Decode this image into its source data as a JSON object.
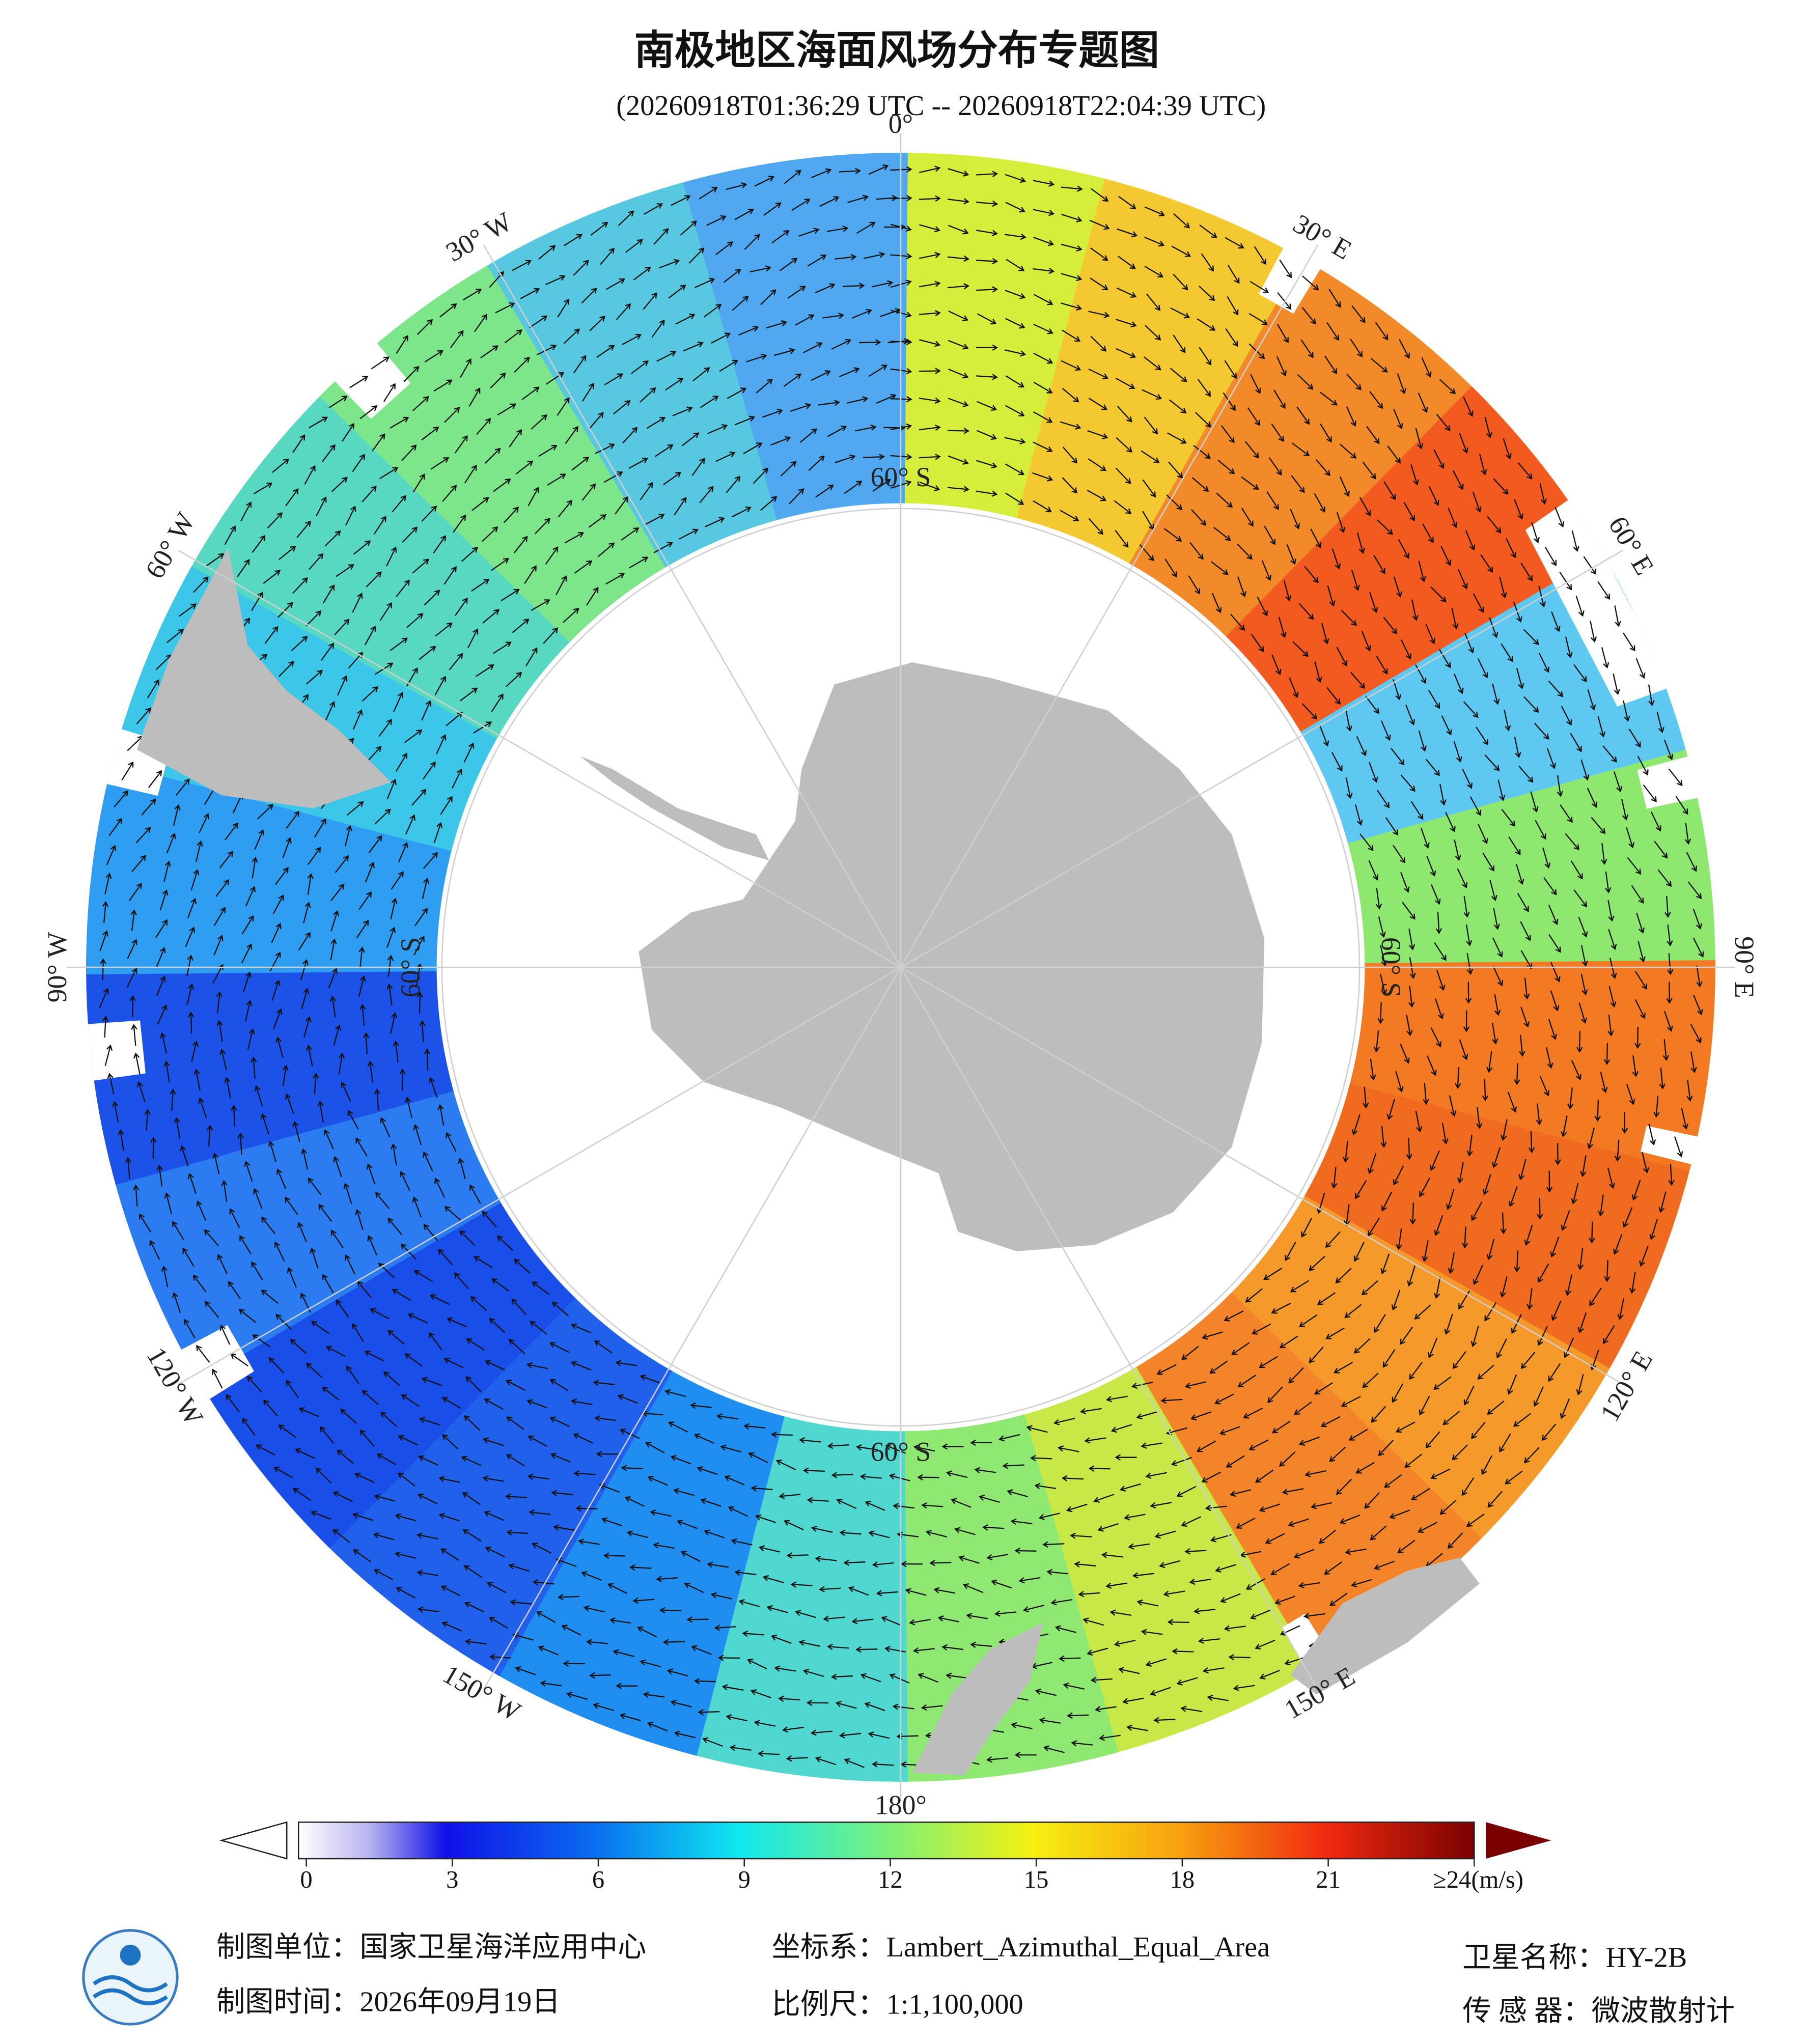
{
  "header": {
    "title": "南极地区海面风场分布专题图",
    "subtitle": "(20260918T01:36:29 UTC -- 20260918T22:04:39 UTC)"
  },
  "map": {
    "longitude_labels": [
      "0°",
      "30° E",
      "60° E",
      "90° E",
      "120° E",
      "150° E",
      "180°",
      "150° W",
      "120° W",
      "90° W",
      "60° W",
      "30° W"
    ],
    "latitude_labels": [
      "60° S",
      "60° S",
      "60° S",
      "60° S"
    ]
  },
  "colorbar": {
    "range": [
      0,
      24
    ],
    "ticks": [
      0,
      3,
      6,
      9,
      12,
      15,
      18,
      21,
      {
        "value": 24,
        "label": "≥24(m/s)"
      }
    ]
  },
  "footer": {
    "unit": "制图单位：国家卫星海洋应用中心",
    "crs": "坐标系：Lambert_Azimuthal_Equal_Area",
    "satellite": "卫星名称：HY-2B",
    "time": "制图时间：2026年09月19日",
    "scale": "比例尺：1:1,100,000",
    "sensor": "传 感 器：微波散射计"
  }
}
